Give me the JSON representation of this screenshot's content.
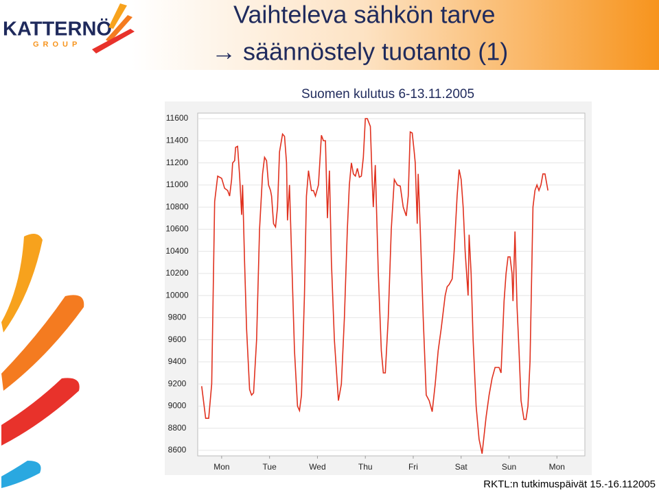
{
  "slide": {
    "title": "Vaihteleva sähkön tarve",
    "subtitle": "→ säännöstely  tuotanto (1)",
    "logo": "KATTERNÖ",
    "logo_sub": "GROUP",
    "footer": "RKTL:n tutkimuspäivät 15.-16.112005"
  },
  "chart_data": {
    "type": "line",
    "title": "Suomen kulutus 6-13.11.2005",
    "color": "#e0301e",
    "grid": true,
    "xlim": [
      0,
      194
    ],
    "ylim": [
      8550,
      11650
    ],
    "xticks": [
      {
        "value": 12,
        "label": "Mon"
      },
      {
        "value": 36,
        "label": "Tue"
      },
      {
        "value": 60,
        "label": "Wed"
      },
      {
        "value": 84,
        "label": "Thu"
      },
      {
        "value": 108,
        "label": "Fri"
      },
      {
        "value": 132,
        "label": "Sat"
      },
      {
        "value": 156,
        "label": "Sun"
      },
      {
        "value": 180,
        "label": "Mon"
      }
    ],
    "yticks": [
      8600,
      8800,
      9000,
      9200,
      9400,
      9600,
      9800,
      10000,
      10200,
      10400,
      10600,
      10800,
      11000,
      11200,
      11400,
      11600
    ],
    "x": [
      2,
      4,
      5.5,
      7,
      8.5,
      10,
      12,
      13.5,
      15,
      16,
      17,
      17.5,
      18.5,
      19,
      20,
      21,
      22,
      22.5,
      23.5,
      24.5,
      26,
      27,
      28,
      29.5,
      31,
      32.5,
      33.5,
      34.5,
      35.5,
      36.5,
      37,
      38,
      39,
      40,
      41,
      42.5,
      43.5,
      44.5,
      45,
      46,
      47,
      48.5,
      50,
      51,
      52,
      53.5,
      54.5,
      55.5,
      57,
      58,
      59,
      60.5,
      61.5,
      62,
      63,
      64,
      65,
      66,
      67,
      68.5,
      70.5,
      72,
      73.5,
      75,
      76,
      77,
      78,
      79,
      80,
      81,
      82,
      83,
      84,
      85,
      86.5,
      87.5,
      88,
      89,
      90.5,
      92,
      93,
      94,
      95.5,
      97,
      98.5,
      100,
      101.5,
      103,
      104.5,
      105.5,
      106.5,
      107.5,
      108.5,
      109,
      110,
      110.5,
      111.5,
      113,
      114.5,
      116,
      117.5,
      119,
      120.5,
      122,
      124,
      125,
      126,
      127.5,
      128.5,
      130,
      131,
      132,
      133,
      134,
      135.5,
      136,
      137,
      138,
      139.5,
      141,
      142.5,
      144.5,
      146,
      147.5,
      149,
      151,
      152,
      153.5,
      154.5,
      155.5,
      156.5,
      157.5,
      158,
      159,
      160,
      161,
      162,
      163.5,
      164.5,
      165.5,
      166.5,
      168,
      169,
      170,
      171,
      172,
      173,
      174,
      175.5
    ],
    "values": [
      9180,
      8890,
      8890,
      9200,
      10850,
      11080,
      11060,
      10970,
      10950,
      10900,
      11050,
      11200,
      11220,
      11340,
      11350,
      11080,
      10730,
      11000,
      10300,
      9700,
      9150,
      9100,
      9120,
      9600,
      10600,
      11100,
      11250,
      11220,
      11000,
      10950,
      10900,
      10650,
      10620,
      10800,
      11300,
      11460,
      11440,
      11200,
      10680,
      11000,
      10400,
      9500,
      9000,
      8960,
      9100,
      10000,
      10900,
      11130,
      10950,
      10950,
      10900,
      11000,
      11300,
      11450,
      11400,
      11400,
      10700,
      11130,
      10300,
      9600,
      9050,
      9200,
      9800,
      10600,
      11000,
      11200,
      11100,
      11080,
      11150,
      11070,
      11080,
      11250,
      11600,
      11600,
      11530,
      11000,
      10800,
      11180,
      10200,
      9500,
      9300,
      9300,
      9800,
      10600,
      11050,
      11000,
      10990,
      10800,
      10720,
      10900,
      11480,
      11470,
      11300,
      11200,
      10650,
      11100,
      10600,
      9800,
      9100,
      9050,
      8950,
      9200,
      9500,
      9700,
      10000,
      10080,
      10100,
      10150,
      10400,
      10900,
      11140,
      11050,
      10800,
      10400,
      10000,
      10550,
      10200,
      9600,
      9000,
      8700,
      8570,
      8900,
      9100,
      9250,
      9350,
      9350,
      9300,
      9950,
      10200,
      10350,
      10350,
      10200,
      9950,
      10580,
      9900,
      9500,
      9050,
      8880,
      8880,
      9000,
      9400,
      10800,
      10950,
      11000,
      10950,
      11000,
      11100,
      11100,
      10950
    ]
  }
}
